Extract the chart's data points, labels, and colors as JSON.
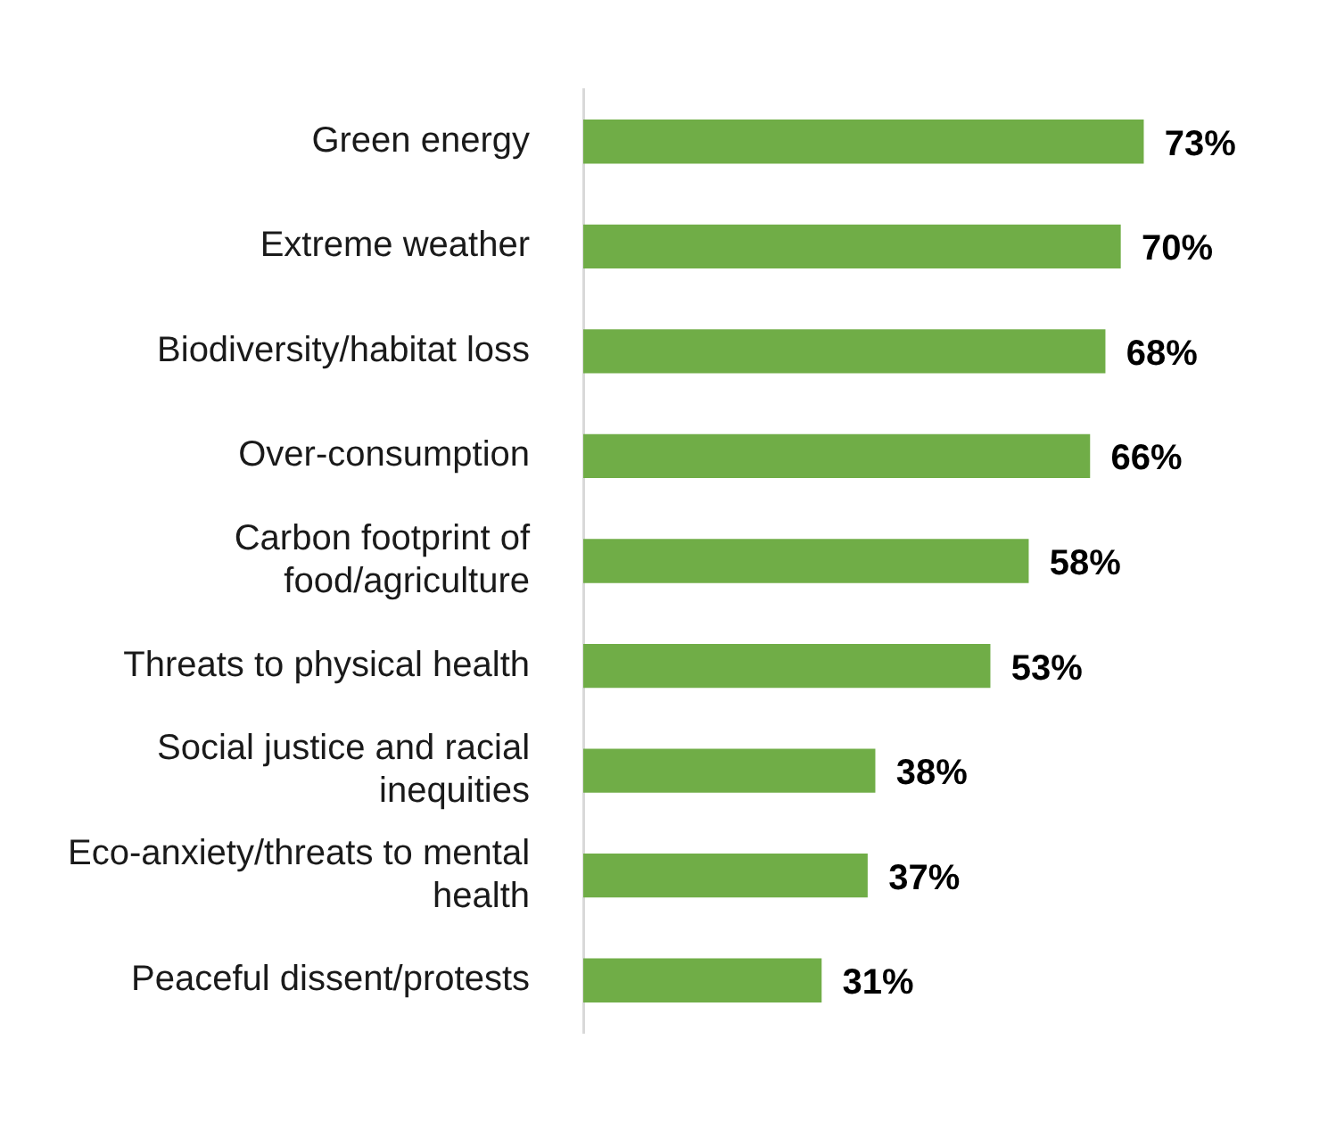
{
  "chart_data": {
    "type": "bar",
    "orientation": "horizontal",
    "categories": [
      "Green energy",
      "Extreme weather",
      "Biodiversity/habitat loss",
      "Over-consumption",
      "Carbon footprint of food/agriculture",
      "Threats to physical health",
      "Social justice and racial inequities",
      "Eco-anxiety/threats to mental health",
      "Peaceful dissent/protests"
    ],
    "values": [
      73,
      70,
      68,
      66,
      58,
      53,
      38,
      37,
      31
    ],
    "value_labels": [
      "73%",
      "70%",
      "68%",
      "66%",
      "58%",
      "53%",
      "38%",
      "37%",
      "31%"
    ],
    "color": "#70ad47",
    "legend": false
  }
}
